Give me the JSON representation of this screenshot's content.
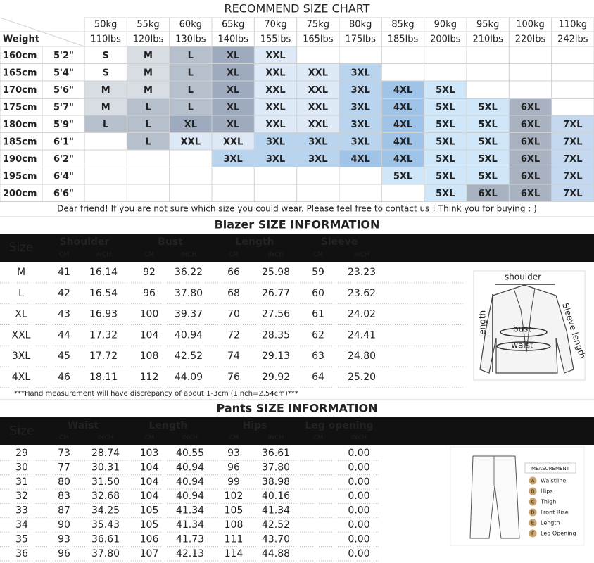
{
  "size_chart": {
    "title": "RECOMMEND SIZE CHART",
    "weight_label": "Weight",
    "weights": [
      {
        "kg": "50kg",
        "lbs": "110lbs"
      },
      {
        "kg": "55kg",
        "lbs": "120lbs"
      },
      {
        "kg": "60kg",
        "lbs": "130lbs"
      },
      {
        "kg": "65kg",
        "lbs": "140lbs"
      },
      {
        "kg": "70kg",
        "lbs": "155lbs"
      },
      {
        "kg": "75kg",
        "lbs": "165lbs"
      },
      {
        "kg": "80kg",
        "lbs": "175lbs"
      },
      {
        "kg": "85kg",
        "lbs": "185lbs"
      },
      {
        "kg": "90kg",
        "lbs": "200lbs"
      },
      {
        "kg": "95kg",
        "lbs": "210lbs"
      },
      {
        "kg": "100kg",
        "lbs": "220lbs"
      },
      {
        "kg": "110kg",
        "lbs": "242lbs"
      }
    ],
    "rows": [
      {
        "cm": "160cm",
        "ft": "5'2\"",
        "sizes": [
          "S",
          "M",
          "L",
          "XL",
          "XXL",
          null,
          null,
          null,
          null,
          null,
          null,
          null
        ]
      },
      {
        "cm": "165cm",
        "ft": "5'4\"",
        "sizes": [
          "S",
          "M",
          "L",
          "XL",
          "XXL",
          "XXL",
          "3XL",
          null,
          null,
          null,
          null,
          null
        ]
      },
      {
        "cm": "170cm",
        "ft": "5'6\"",
        "sizes": [
          "M",
          "M",
          "L",
          "XL",
          "XXL",
          "XXL",
          "3XL",
          "4XL",
          "5XL",
          null,
          null,
          null
        ]
      },
      {
        "cm": "175cm",
        "ft": "5'7\"",
        "sizes": [
          "M",
          "L",
          "L",
          "XL",
          "XXL",
          "XXL",
          "3XL",
          "4XL",
          "5XL",
          "5XL",
          "6XL",
          null
        ]
      },
      {
        "cm": "180cm",
        "ft": "5'9\"",
        "sizes": [
          "L",
          "L",
          "XL",
          "XL",
          "XXL",
          "XXL",
          "3XL",
          "4XL",
          "5XL",
          "5XL",
          "6XL",
          "7XL"
        ]
      },
      {
        "cm": "185cm",
        "ft": "6'1\"",
        "sizes": [
          null,
          "L",
          "XXL",
          "XXL",
          "3XL",
          "3XL",
          "3XL",
          "4XL",
          "5XL",
          "5XL",
          "6XL",
          "7XL"
        ]
      },
      {
        "cm": "190cm",
        "ft": "6'2\"",
        "sizes": [
          null,
          null,
          null,
          "3XL",
          "3XL",
          "3XL",
          "4XL",
          "4XL",
          "5XL",
          "5XL",
          "6XL",
          "7XL"
        ]
      },
      {
        "cm": "195cm",
        "ft": "6'4\"",
        "sizes": [
          null,
          null,
          null,
          null,
          null,
          null,
          null,
          "5XL",
          "5XL",
          "5XL",
          "6XL",
          "7XL"
        ]
      },
      {
        "cm": "200cm",
        "ft": "6'6\"",
        "sizes": [
          null,
          null,
          null,
          null,
          null,
          null,
          null,
          null,
          "5XL",
          "6XL",
          "6XL",
          "7XL"
        ]
      }
    ],
    "colors": {
      "S": "#ffffff",
      "M": "#d8dce3",
      "L": "#b6bfcc",
      "XL": "#9eaabd",
      "XXL": "#dde9f6",
      "3XL": "#b9d4ef",
      "4XL": "#a0c4e8",
      "5XL": "#cfe7f8",
      "6XL": "#a8b2c1",
      "7XL": "#c4d9f0"
    },
    "note": "Dear friend! If you are not sure which size you could wear. Please feel free to contact us ! Think you for buying  : )"
  },
  "blazer": {
    "title": "Blazer SIZE INFORMATION",
    "size_label": "Size",
    "groups": [
      "Shoulder",
      "Bust",
      "Length",
      "Sleeve"
    ],
    "units": [
      "CM",
      "INCH"
    ],
    "rows": [
      [
        "M",
        "41",
        "16.14",
        "92",
        "36.22",
        "66",
        "25.98",
        "59",
        "23.23"
      ],
      [
        "L",
        "42",
        "16.54",
        "96",
        "37.80",
        "68",
        "26.77",
        "60",
        "23.62"
      ],
      [
        "XL",
        "43",
        "16.93",
        "100",
        "39.37",
        "70",
        "27.56",
        "61",
        "24.02"
      ],
      [
        "XXL",
        "44",
        "17.32",
        "104",
        "40.94",
        "72",
        "28.35",
        "62",
        "24.41"
      ],
      [
        "3XL",
        "45",
        "17.72",
        "108",
        "42.52",
        "74",
        "29.13",
        "63",
        "24.80"
      ],
      [
        "4XL",
        "46",
        "18.11",
        "112",
        "44.09",
        "76",
        "29.92",
        "64",
        "25.20"
      ]
    ],
    "note": "***Hand measurement will have discrepancy of about 1-3cm (1inch=2.54cm)***",
    "diagram": {
      "shoulder": "shoulder",
      "bust": "bust",
      "waist": "waist",
      "length": "length",
      "sleeve": "Sleeve length"
    }
  },
  "pants": {
    "title": "Pants SIZE INFORMATION",
    "size_label": "Size",
    "groups": [
      "Waist",
      "Length",
      "Hips",
      "Leg opening"
    ],
    "units": [
      "CM",
      "INCH"
    ],
    "rows": [
      [
        "29",
        "73",
        "28.74",
        "103",
        "40.55",
        "93",
        "36.61",
        null,
        "0.00"
      ],
      [
        "30",
        "77",
        "30.31",
        "104",
        "40.94",
        "96",
        "37.80",
        null,
        "0.00"
      ],
      [
        "31",
        "80",
        "31.50",
        "104",
        "40.94",
        "99",
        "38.98",
        null,
        "0.00"
      ],
      [
        "32",
        "83",
        "32.68",
        "104",
        "40.94",
        "102",
        "40.16",
        null,
        "0.00"
      ],
      [
        "33",
        "87",
        "34.25",
        "105",
        "41.34",
        "105",
        "41.34",
        null,
        "0.00"
      ],
      [
        "34",
        "90",
        "35.43",
        "105",
        "41.34",
        "108",
        "42.52",
        null,
        "0.00"
      ],
      [
        "35",
        "93",
        "36.61",
        "106",
        "41.73",
        "111",
        "43.70",
        null,
        "0.00"
      ],
      [
        "36",
        "96",
        "37.80",
        "107",
        "42.13",
        "114",
        "44.88",
        null,
        "0.00"
      ]
    ],
    "diagram": {
      "title": "MEASUREMENT",
      "items": [
        {
          "letter": "A",
          "label": "Waistline"
        },
        {
          "letter": "B",
          "label": "Hips"
        },
        {
          "letter": "C",
          "label": "Thigh"
        },
        {
          "letter": "D",
          "label": "Front Rise"
        },
        {
          "letter": "E",
          "label": "Length"
        },
        {
          "letter": "F",
          "label": "Leg Opening"
        }
      ]
    }
  }
}
